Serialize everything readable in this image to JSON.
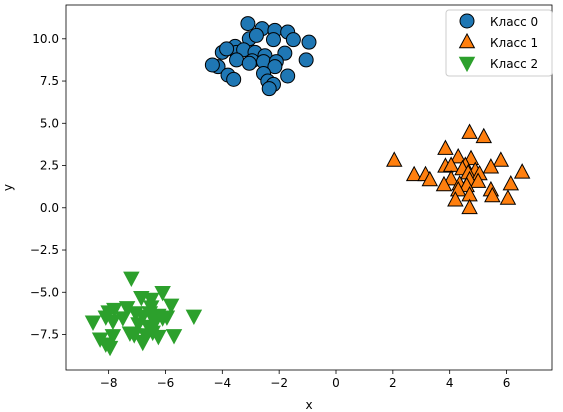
{
  "chart_data": {
    "type": "scatter",
    "title": "",
    "xlabel": "x",
    "ylabel": "y",
    "xlim": [
      -9.5,
      7.6
    ],
    "ylim": [
      -9.6,
      12.0
    ],
    "xticks": [
      -8,
      -6,
      -4,
      -2,
      0,
      2,
      4,
      6
    ],
    "yticks": [
      -7.5,
      -5.0,
      -2.5,
      0.0,
      2.5,
      5.0,
      7.5,
      10.0
    ],
    "xtick_labels": [
      "−8",
      "−6",
      "−4",
      "−2",
      "0",
      "2",
      "4",
      "6"
    ],
    "ytick_labels": [
      "−7.5",
      "−5.0",
      "−2.5",
      "0.0",
      "2.5",
      "5.0",
      "7.5",
      "10.0"
    ],
    "grid": false,
    "legend": "top-right",
    "series": [
      {
        "name": "Класс 0",
        "marker": "circle",
        "color": "#1f77b4",
        "points": [
          [
            -3.1,
            10.9
          ],
          [
            -2.6,
            10.6
          ],
          [
            -2.15,
            10.5
          ],
          [
            -1.7,
            10.4
          ],
          [
            -1.5,
            9.95
          ],
          [
            -0.95,
            9.8
          ],
          [
            -3.05,
            10.0
          ],
          [
            -2.8,
            10.2
          ],
          [
            -2.2,
            9.95
          ],
          [
            -3.55,
            9.55
          ],
          [
            -4.0,
            9.2
          ],
          [
            -3.5,
            9.2
          ],
          [
            -3.85,
            9.4
          ],
          [
            -3.25,
            9.35
          ],
          [
            -2.85,
            9.2
          ],
          [
            -1.8,
            9.15
          ],
          [
            -2.5,
            9.0
          ],
          [
            -3.5,
            8.75
          ],
          [
            -2.95,
            8.7
          ],
          [
            -2.55,
            8.65
          ],
          [
            -2.1,
            8.65
          ],
          [
            -1.05,
            8.75
          ],
          [
            -4.15,
            8.35
          ],
          [
            -4.35,
            8.45
          ],
          [
            -3.05,
            8.55
          ],
          [
            -2.15,
            8.35
          ],
          [
            -3.8,
            7.85
          ],
          [
            -2.55,
            7.95
          ],
          [
            -1.7,
            7.8
          ],
          [
            -3.6,
            7.6
          ],
          [
            -2.4,
            7.5
          ],
          [
            -2.2,
            7.3
          ],
          [
            -2.35,
            7.05
          ]
        ]
      },
      {
        "name": "Класс 1",
        "marker": "triangle-up",
        "color": "#ff7f0e",
        "points": [
          [
            4.7,
            4.45
          ],
          [
            5.2,
            4.2
          ],
          [
            3.85,
            3.5
          ],
          [
            4.3,
            3.0
          ],
          [
            4.75,
            2.9
          ],
          [
            5.8,
            2.8
          ],
          [
            2.05,
            2.8
          ],
          [
            3.85,
            2.45
          ],
          [
            4.05,
            2.5
          ],
          [
            4.55,
            2.5
          ],
          [
            4.45,
            2.3
          ],
          [
            5.45,
            2.4
          ],
          [
            6.55,
            2.1
          ],
          [
            4.9,
            2.2
          ],
          [
            2.75,
            1.95
          ],
          [
            3.15,
            1.95
          ],
          [
            4.65,
            2.05
          ],
          [
            5.05,
            2.0
          ],
          [
            3.3,
            1.65
          ],
          [
            4.05,
            1.7
          ],
          [
            4.7,
            1.65
          ],
          [
            5.0,
            1.55
          ],
          [
            3.8,
            1.35
          ],
          [
            4.35,
            1.4
          ],
          [
            4.6,
            1.3
          ],
          [
            6.15,
            1.4
          ],
          [
            4.3,
            1.05
          ],
          [
            5.45,
            1.05
          ],
          [
            4.7,
            0.75
          ],
          [
            5.5,
            0.7
          ],
          [
            4.2,
            0.45
          ],
          [
            6.05,
            0.55
          ],
          [
            4.7,
            0.0
          ]
        ]
      },
      {
        "name": "Класс 2",
        "marker": "triangle-down",
        "color": "#2ca02c",
        "points": [
          [
            -7.2,
            -4.15
          ],
          [
            -6.1,
            -5.0
          ],
          [
            -6.85,
            -5.3
          ],
          [
            -6.5,
            -5.4
          ],
          [
            -5.8,
            -5.75
          ],
          [
            -7.35,
            -5.9
          ],
          [
            -6.5,
            -5.85
          ],
          [
            -7.8,
            -6.0
          ],
          [
            -8.0,
            -6.15
          ],
          [
            -7.05,
            -6.2
          ],
          [
            -6.55,
            -6.2
          ],
          [
            -6.25,
            -6.35
          ],
          [
            -5.95,
            -6.45
          ],
          [
            -5.0,
            -6.4
          ],
          [
            -7.5,
            -6.5
          ],
          [
            -6.8,
            -6.4
          ],
          [
            -6.1,
            -6.5
          ],
          [
            -8.1,
            -6.45
          ],
          [
            -8.55,
            -6.75
          ],
          [
            -7.85,
            -6.7
          ],
          [
            -6.35,
            -6.7
          ],
          [
            -6.95,
            -6.85
          ],
          [
            -6.6,
            -7.0
          ],
          [
            -7.25,
            -7.4
          ],
          [
            -6.45,
            -7.35
          ],
          [
            -5.7,
            -7.55
          ],
          [
            -7.85,
            -7.55
          ],
          [
            -7.1,
            -7.5
          ],
          [
            -6.7,
            -7.5
          ],
          [
            -6.25,
            -7.6
          ],
          [
            -8.3,
            -7.75
          ],
          [
            -6.8,
            -7.9
          ],
          [
            -8.1,
            -8.05
          ],
          [
            -7.95,
            -8.25
          ],
          [
            -6.8,
            -7.95
          ]
        ]
      }
    ]
  }
}
